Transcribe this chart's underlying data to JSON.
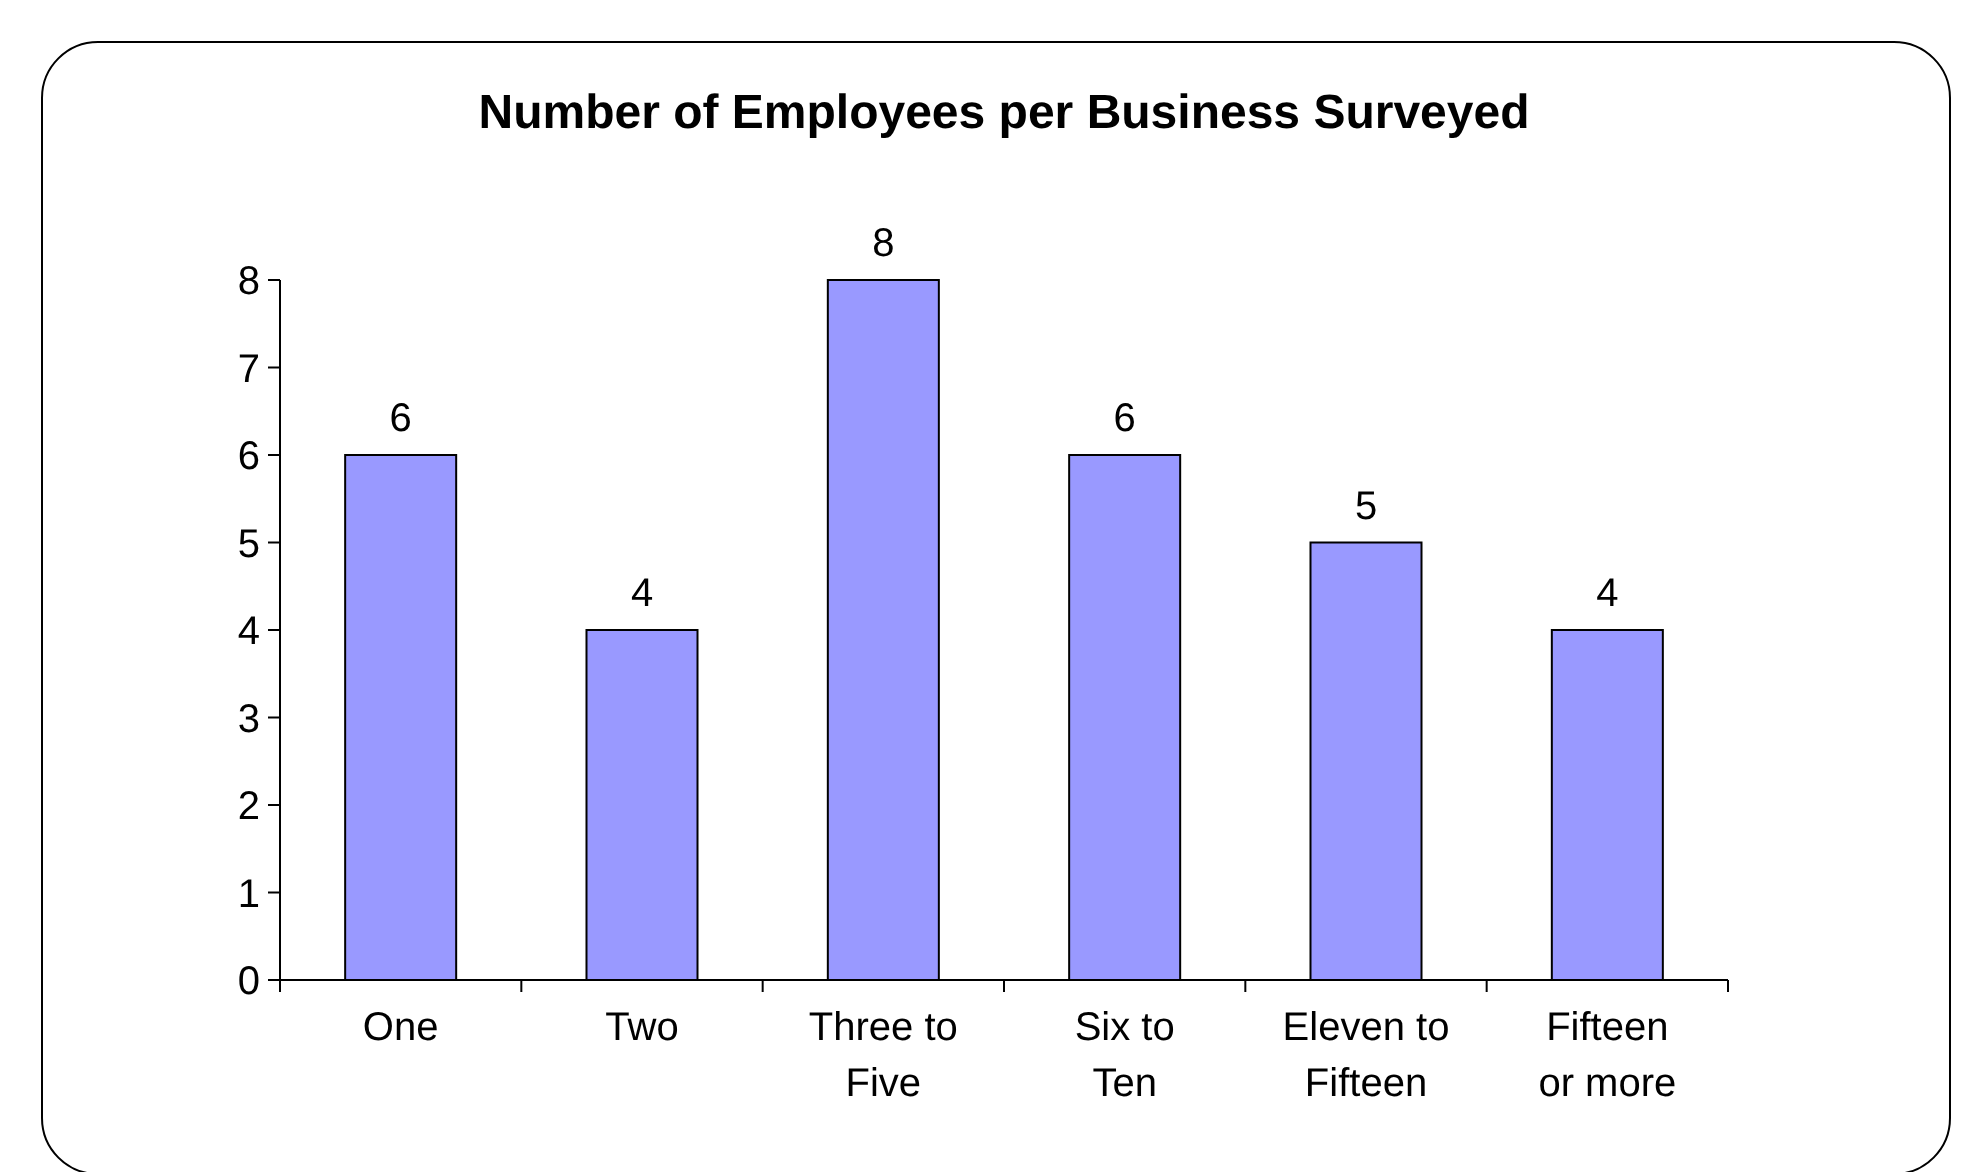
{
  "chart_data": {
    "type": "bar",
    "title": "Number of Employees per Business Surveyed",
    "categories": [
      "One",
      "Two",
      "Three to Five",
      "Six to Ten",
      "Eleven to Fifteen",
      "Fifteen or more"
    ],
    "values": [
      6,
      4,
      8,
      6,
      5,
      4
    ],
    "color": "#9999ff",
    "ylim": [
      0,
      8
    ],
    "yticks": [
      0,
      1,
      2,
      3,
      4,
      5,
      6,
      7,
      8
    ],
    "data_labels": true
  }
}
